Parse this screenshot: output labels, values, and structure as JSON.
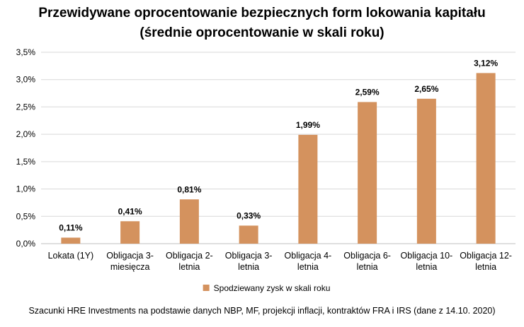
{
  "chart_data": {
    "type": "bar",
    "title": [
      "Przewidywane oprocentowanie bezpiecznych form lokowania kapitału",
      "(średnie oprocentowanie w skali roku)"
    ],
    "categories": [
      [
        "Lokata (1Y)"
      ],
      [
        "Obligacja 3-",
        "miesięcza"
      ],
      [
        "Obligacja 2-",
        "letnia"
      ],
      [
        "Obligacja 3-",
        "letnia"
      ],
      [
        "Obligacja 4-",
        "letnia"
      ],
      [
        "Obligacja 6-",
        "letnia"
      ],
      [
        "Obligacja 10-",
        "letnia"
      ],
      [
        "Obligacja 12-",
        "letnia"
      ]
    ],
    "series": [
      {
        "name": "Spodziewany zysk w skali roku",
        "values": [
          0.11,
          0.41,
          0.81,
          0.33,
          1.99,
          2.59,
          2.65,
          3.12
        ],
        "color": "#D4925E"
      }
    ],
    "data_labels": [
      "0,11%",
      "0,41%",
      "0,81%",
      "0,33%",
      "1,99%",
      "2,59%",
      "2,65%",
      "3,12%"
    ],
    "y_ticks": [
      "0,0%",
      "0,5%",
      "1,0%",
      "1,5%",
      "2,0%",
      "2,5%",
      "3,0%",
      "3,5%"
    ],
    "ylim": [
      0,
      3.5
    ],
    "grid": true,
    "legend_position": "bottom",
    "source_note": "Szacunki HRE Investments na podstawie danych NBP, MF, projekcji inflacji, kontraktów FRA i IRS (dane z 14.10. 2020)"
  }
}
